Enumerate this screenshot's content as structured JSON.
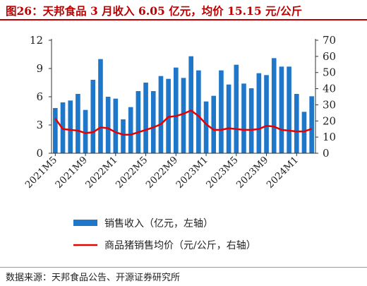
{
  "title": "图26：天邦食品 3 月收入 6.05 亿元，均价 15.15 元/公斤",
  "source": "数据来源：天邦食品公告、开源证券研究所",
  "colors": {
    "bar": "#1f77c9",
    "line": "#e60000",
    "title": "#c00000"
  },
  "chart_data": {
    "type": "bar",
    "categories": [
      "2021M5",
      "2021M6",
      "2021M7",
      "2021M8",
      "2021M9",
      "2021M10",
      "2021M11",
      "2021M12",
      "2022M1",
      "2022M2",
      "2022M3",
      "2022M4",
      "2022M5",
      "2022M6",
      "2022M7",
      "2022M8",
      "2022M9",
      "2022M10",
      "2022M11",
      "2022M12",
      "2023M1",
      "2023M2",
      "2023M3",
      "2023M4",
      "2023M5",
      "2023M6",
      "2023M7",
      "2023M8",
      "2023M9",
      "2023M10",
      "2023M11",
      "2023M12",
      "2024M1",
      "2024M2",
      "2024M3"
    ],
    "tick_labels": [
      "2021M5",
      "2021M9",
      "2022M1",
      "2022M5",
      "2022M9",
      "2023M1",
      "2023M5",
      "2023M9",
      "2024M1"
    ],
    "series": [
      {
        "name": "销售收入（亿元，左轴）",
        "axis": "left",
        "kind": "bar",
        "values": [
          4.8,
          5.4,
          5.6,
          6.3,
          4.6,
          7.8,
          10.0,
          6.0,
          5.8,
          3.6,
          4.9,
          6.6,
          7.5,
          6.6,
          8.2,
          7.9,
          9.1,
          8.0,
          10.3,
          8.8,
          5.5,
          6.1,
          8.8,
          7.3,
          9.4,
          7.4,
          6.9,
          8.5,
          8.3,
          10.1,
          9.2,
          9.2,
          6.3,
          4.4,
          6.05
        ]
      },
      {
        "name": "商品猪销售均价（元/公斤，右轴）",
        "axis": "right",
        "kind": "line",
        "values": [
          21.5,
          15.0,
          14.5,
          14.0,
          12.5,
          13.0,
          16.0,
          15.5,
          13.0,
          11.5,
          11.5,
          13.0,
          14.5,
          16.0,
          18.0,
          22.5,
          23.0,
          24.5,
          26.5,
          23.0,
          18.0,
          14.5,
          14.5,
          15.5,
          15.0,
          14.5,
          14.5,
          15.0,
          17.0,
          16.5,
          14.5,
          14.0,
          13.5,
          13.5,
          15.15
        ]
      }
    ],
    "left_axis": {
      "ylim": [
        0,
        12
      ],
      "ticks": [
        0,
        3,
        6,
        9,
        12
      ]
    },
    "right_axis": {
      "ylim": [
        0,
        70
      ],
      "ticks": [
        0,
        10,
        20,
        30,
        40,
        50,
        60,
        70
      ]
    },
    "legend": {
      "placement": "bottom",
      "items": [
        "销售收入（亿元，左轴）",
        "商品猪销售均价（元/公斤，右轴）"
      ]
    }
  }
}
